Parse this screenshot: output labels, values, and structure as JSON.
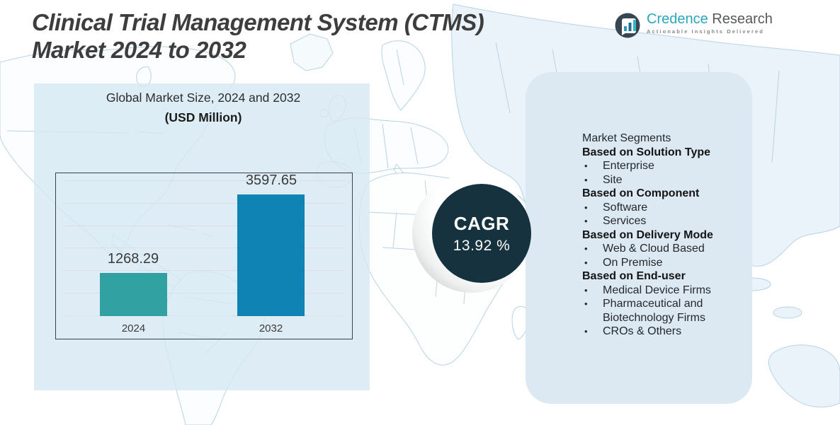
{
  "page": {
    "title_line1": "Clinical Trial Management System (CTMS)",
    "title_line2": "Market 2024 to 2032"
  },
  "logo": {
    "brand_primary": "Credence",
    "brand_secondary": "Research",
    "tagline": "Actionable Insights Delivered"
  },
  "chart_heading": {
    "line1": "Global Market Size, 2024 and 2032",
    "line2": "(USD Million)"
  },
  "chart_data": {
    "type": "bar",
    "title": "Global Market Size, 2024 and 2032 (USD Million)",
    "categories": [
      "2024",
      "2032"
    ],
    "values": [
      1268.29,
      3597.65
    ],
    "unit": "USD Million",
    "bar_colors": [
      "#31a1a1",
      "#0e83b4"
    ],
    "ylim": [
      0,
      4000
    ],
    "grid": true,
    "legend": false
  },
  "cagr": {
    "label": "CAGR",
    "value": "13.92 %"
  },
  "segments": {
    "heading": "Market Segments",
    "groups": [
      {
        "title": "Based on Solution Type",
        "items": [
          "Enterprise",
          "Site"
        ]
      },
      {
        "title": "Based on Component",
        "items": [
          "Software",
          "Services"
        ]
      },
      {
        "title": "Based on Delivery Mode",
        "items": [
          "Web & Cloud Based",
          "On Premise"
        ]
      },
      {
        "title": "Based on End-user",
        "items": [
          "Medical Device Firms",
          "Pharmaceutical and Biotechnology Firms",
          "CROs & Others"
        ]
      }
    ]
  },
  "colors": {
    "bar_2024": "#31a1a1",
    "bar_2032": "#0e83b4",
    "cagr_circle": "#16323e",
    "panel": "#dce9f2",
    "backdrop": "#d6e8f3",
    "map_stroke": "#b7d3e5",
    "brand_teal": "#2aa6bc",
    "text_dark": "#3d3d3d"
  }
}
